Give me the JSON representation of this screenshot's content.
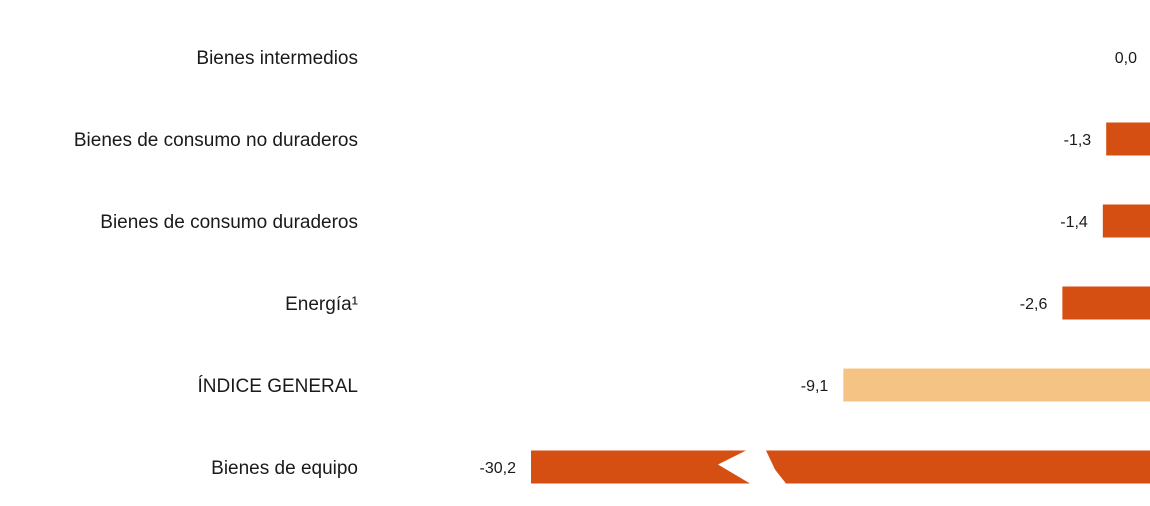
{
  "chart_data": {
    "type": "bar",
    "orientation": "horizontal",
    "title": "",
    "xlabel": "",
    "ylabel": "",
    "grid": false,
    "categories": [
      "Bienes intermedios",
      "Bienes de consumo no duraderos",
      "Bienes de consumo duraderos",
      "Energía¹",
      "ÍNDICE GENERAL",
      "Bienes de equipo"
    ],
    "values": [
      0.0,
      -1.3,
      -1.4,
      -2.6,
      -9.1,
      -30.2
    ],
    "value_labels": [
      "0,0",
      "-1,3",
      "-1,4",
      "-2,6",
      "-9,1",
      "-30,2"
    ],
    "highlight_category": "ÍNDICE GENERAL",
    "axis_break_on": "Bienes de equipo",
    "colors": {
      "bar": "#d64f12",
      "highlight": "#f5c485",
      "text": "#1a1a1a"
    }
  }
}
